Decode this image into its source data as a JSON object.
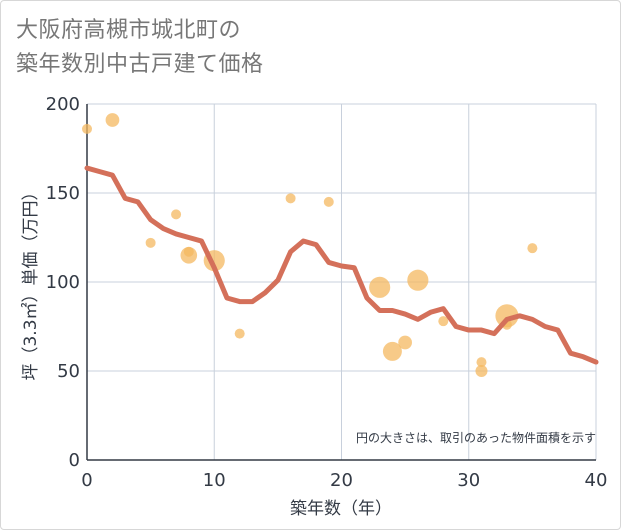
{
  "chart_data": {
    "type": "scatter",
    "title": [
      "大阪府高槻市城北町の",
      "築年数別中古戸建て価格"
    ],
    "xlabel": "築年数（年）",
    "ylabel": "坪（3.3㎡）単価（万円）",
    "xlim": [
      0,
      40
    ],
    "ylim": [
      0,
      200
    ],
    "x_ticks": [
      0,
      10,
      20,
      30,
      40
    ],
    "y_ticks": [
      0,
      50,
      100,
      150,
      200
    ],
    "grid": true,
    "note": "円の大きさは、取引のあった物件面積を示す",
    "colors": {
      "bubble": "#f4b860",
      "line": "#d4705a",
      "grid": "#c8d0dc"
    },
    "scatter_series": {
      "points": [
        {
          "x": 0,
          "y": 186,
          "size": 1
        },
        {
          "x": 2,
          "y": 191,
          "size": 2
        },
        {
          "x": 5,
          "y": 122,
          "size": 1
        },
        {
          "x": 7,
          "y": 138,
          "size": 1
        },
        {
          "x": 8,
          "y": 115,
          "size": 3
        },
        {
          "x": 8,
          "y": 117,
          "size": 1
        },
        {
          "x": 10,
          "y": 112,
          "size": 5
        },
        {
          "x": 12,
          "y": 71,
          "size": 1
        },
        {
          "x": 16,
          "y": 147,
          "size": 1
        },
        {
          "x": 19,
          "y": 145,
          "size": 1
        },
        {
          "x": 23,
          "y": 97,
          "size": 5
        },
        {
          "x": 24,
          "y": 61,
          "size": 4
        },
        {
          "x": 25,
          "y": 66,
          "size": 2
        },
        {
          "x": 26,
          "y": 101,
          "size": 5
        },
        {
          "x": 28,
          "y": 78,
          "size": 1
        },
        {
          "x": 31,
          "y": 55,
          "size": 1
        },
        {
          "x": 31,
          "y": 50,
          "size": 1.5
        },
        {
          "x": 33,
          "y": 81,
          "size": 6
        },
        {
          "x": 33,
          "y": 76,
          "size": 1
        },
        {
          "x": 35,
          "y": 119,
          "size": 1
        }
      ]
    },
    "line_series": {
      "x": [
        0,
        1,
        2,
        3,
        4,
        5,
        6,
        7,
        8,
        9,
        10,
        11,
        12,
        13,
        14,
        15,
        16,
        17,
        18,
        19,
        20,
        21,
        22,
        23,
        24,
        25,
        26,
        27,
        28,
        29,
        30,
        31,
        32,
        33,
        34,
        35,
        36,
        37,
        38,
        39,
        40
      ],
      "y": [
        164,
        162,
        160,
        147,
        145,
        135,
        130,
        127,
        125,
        123,
        108,
        91,
        89,
        89,
        94,
        101,
        117,
        123,
        121,
        111,
        109,
        108,
        91,
        84,
        84,
        82,
        79,
        83,
        85,
        75,
        73,
        73,
        71,
        79,
        81,
        79,
        75,
        73,
        60,
        58,
        55
      ]
    }
  }
}
